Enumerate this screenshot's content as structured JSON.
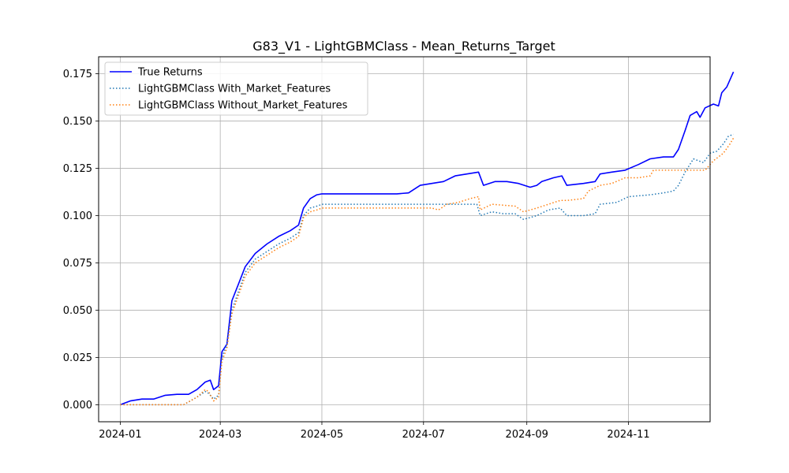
{
  "chart_data": {
    "type": "line",
    "title": "G83_V1 - LightGBMClass - Mean_Returns_Target",
    "xlabel": "",
    "ylabel": "",
    "x_type": "date",
    "xlim": [
      "2023-12-19",
      "2024-12-20"
    ],
    "ylim": [
      -0.009,
      0.184
    ],
    "x_ticks": [
      "2024-01",
      "2024-03",
      "2024-05",
      "2024-07",
      "2024-09",
      "2024-11"
    ],
    "y_ticks": [
      "0.000",
      "0.025",
      "0.050",
      "0.075",
      "0.100",
      "0.125",
      "0.150",
      "0.175"
    ],
    "grid": true,
    "legend_position": "top-left",
    "series": [
      {
        "name": "True Returns",
        "color": "#0000ff",
        "style": "solid",
        "points": [
          [
            "2024-01-01",
            0.0
          ],
          [
            "2024-01-07",
            0.002
          ],
          [
            "2024-01-14",
            0.003
          ],
          [
            "2024-01-21",
            0.003
          ],
          [
            "2024-01-28",
            0.005
          ],
          [
            "2024-02-04",
            0.0055
          ],
          [
            "2024-02-11",
            0.0055
          ],
          [
            "2024-02-16",
            0.008
          ],
          [
            "2024-02-21",
            0.012
          ],
          [
            "2024-02-24",
            0.013
          ],
          [
            "2024-02-26",
            0.008
          ],
          [
            "2024-02-29",
            0.01
          ],
          [
            "2024-03-02",
            0.028
          ],
          [
            "2024-03-05",
            0.032
          ],
          [
            "2024-03-08",
            0.055
          ],
          [
            "2024-03-12",
            0.064
          ],
          [
            "2024-03-16",
            0.073
          ],
          [
            "2024-03-22",
            0.08
          ],
          [
            "2024-03-29",
            0.085
          ],
          [
            "2024-04-05",
            0.089
          ],
          [
            "2024-04-12",
            0.092
          ],
          [
            "2024-04-17",
            0.095
          ],
          [
            "2024-04-20",
            0.104
          ],
          [
            "2024-04-24",
            0.109
          ],
          [
            "2024-04-28",
            0.111
          ],
          [
            "2024-05-01",
            0.1115
          ],
          [
            "2024-06-15",
            0.1115
          ],
          [
            "2024-06-22",
            0.112
          ],
          [
            "2024-06-29",
            0.116
          ],
          [
            "2024-07-06",
            0.117
          ],
          [
            "2024-07-13",
            0.118
          ],
          [
            "2024-07-20",
            0.121
          ],
          [
            "2024-07-27",
            0.122
          ],
          [
            "2024-08-03",
            0.123
          ],
          [
            "2024-08-06",
            0.116
          ],
          [
            "2024-08-13",
            0.118
          ],
          [
            "2024-08-20",
            0.118
          ],
          [
            "2024-08-27",
            0.117
          ],
          [
            "2024-09-03",
            0.115
          ],
          [
            "2024-09-07",
            0.116
          ],
          [
            "2024-09-10",
            0.118
          ],
          [
            "2024-09-17",
            0.12
          ],
          [
            "2024-09-22",
            0.121
          ],
          [
            "2024-09-25",
            0.116
          ],
          [
            "2024-10-05",
            0.117
          ],
          [
            "2024-10-12",
            0.118
          ],
          [
            "2024-10-15",
            0.122
          ],
          [
            "2024-10-22",
            0.123
          ],
          [
            "2024-10-30",
            0.124
          ],
          [
            "2024-11-07",
            0.127
          ],
          [
            "2024-11-14",
            0.13
          ],
          [
            "2024-11-22",
            0.131
          ],
          [
            "2024-11-28",
            0.131
          ],
          [
            "2024-12-01",
            0.135
          ],
          [
            "2024-12-05",
            0.145
          ],
          [
            "2024-12-08",
            0.153
          ],
          [
            "2024-12-12",
            0.155
          ],
          [
            "2024-12-14",
            0.152
          ],
          [
            "2024-12-17",
            0.157
          ],
          [
            "2024-12-22",
            0.159
          ],
          [
            "2024-12-25",
            0.158
          ],
          [
            "2024-12-27",
            0.165
          ],
          [
            "2024-12-30",
            0.168
          ],
          [
            "2025-01-03",
            0.176
          ]
        ]
      },
      {
        "name": "LightGBMClass With_Market_Features",
        "color": "#1f77b4",
        "style": "dotted",
        "points": [
          [
            "2024-01-01",
            0.0
          ],
          [
            "2024-02-08",
            0.0
          ],
          [
            "2024-02-16",
            0.004
          ],
          [
            "2024-02-21",
            0.007
          ],
          [
            "2024-02-23",
            0.006
          ],
          [
            "2024-02-26",
            0.003
          ],
          [
            "2024-02-29",
            0.005
          ],
          [
            "2024-03-02",
            0.025
          ],
          [
            "2024-03-05",
            0.032
          ],
          [
            "2024-03-08",
            0.05
          ],
          [
            "2024-03-12",
            0.06
          ],
          [
            "2024-03-16",
            0.07
          ],
          [
            "2024-03-22",
            0.077
          ],
          [
            "2024-03-29",
            0.081
          ],
          [
            "2024-04-05",
            0.085
          ],
          [
            "2024-04-12",
            0.088
          ],
          [
            "2024-04-17",
            0.091
          ],
          [
            "2024-04-20",
            0.1
          ],
          [
            "2024-04-24",
            0.104
          ],
          [
            "2024-04-28",
            0.105
          ],
          [
            "2024-05-01",
            0.106
          ],
          [
            "2024-06-30",
            0.106
          ],
          [
            "2024-08-02",
            0.106
          ],
          [
            "2024-08-04",
            0.1
          ],
          [
            "2024-08-11",
            0.102
          ],
          [
            "2024-08-18",
            0.101
          ],
          [
            "2024-08-25",
            0.101
          ],
          [
            "2024-08-30",
            0.098
          ],
          [
            "2024-09-07",
            0.1
          ],
          [
            "2024-09-14",
            0.103
          ],
          [
            "2024-09-21",
            0.104
          ],
          [
            "2024-09-25",
            0.1
          ],
          [
            "2024-10-05",
            0.1
          ],
          [
            "2024-10-12",
            0.101
          ],
          [
            "2024-10-15",
            0.106
          ],
          [
            "2024-10-25",
            0.107
          ],
          [
            "2024-11-01",
            0.11
          ],
          [
            "2024-11-14",
            0.111
          ],
          [
            "2024-11-22",
            0.112
          ],
          [
            "2024-11-28",
            0.113
          ],
          [
            "2024-12-01",
            0.116
          ],
          [
            "2024-12-05",
            0.123
          ],
          [
            "2024-12-10",
            0.13
          ],
          [
            "2024-12-16",
            0.128
          ],
          [
            "2024-12-20",
            0.133
          ],
          [
            "2024-12-24",
            0.134
          ],
          [
            "2024-12-28",
            0.138
          ],
          [
            "2024-12-31",
            0.142
          ],
          [
            "2025-01-03",
            0.143
          ]
        ]
      },
      {
        "name": "LightGBMClass Without_Market_Features",
        "color": "#ff7f0e",
        "style": "dotted",
        "points": [
          [
            "2024-01-01",
            0.0
          ],
          [
            "2024-02-08",
            0.0
          ],
          [
            "2024-02-16",
            0.004
          ],
          [
            "2024-02-21",
            0.008
          ],
          [
            "2024-02-23",
            0.007
          ],
          [
            "2024-02-26",
            0.002
          ],
          [
            "2024-02-29",
            0.004
          ],
          [
            "2024-03-02",
            0.023
          ],
          [
            "2024-03-05",
            0.03
          ],
          [
            "2024-03-08",
            0.048
          ],
          [
            "2024-03-12",
            0.058
          ],
          [
            "2024-03-16",
            0.068
          ],
          [
            "2024-03-22",
            0.075
          ],
          [
            "2024-03-29",
            0.079
          ],
          [
            "2024-04-05",
            0.083
          ],
          [
            "2024-04-12",
            0.086
          ],
          [
            "2024-04-17",
            0.089
          ],
          [
            "2024-04-20",
            0.099
          ],
          [
            "2024-04-24",
            0.102
          ],
          [
            "2024-04-28",
            0.103
          ],
          [
            "2024-05-01",
            0.104
          ],
          [
            "2024-06-30",
            0.104
          ],
          [
            "2024-07-06",
            0.104
          ],
          [
            "2024-07-10",
            0.103
          ],
          [
            "2024-07-15",
            0.106
          ],
          [
            "2024-07-22",
            0.107
          ],
          [
            "2024-07-29",
            0.109
          ],
          [
            "2024-08-03",
            0.11
          ],
          [
            "2024-08-04",
            0.103
          ],
          [
            "2024-08-11",
            0.106
          ],
          [
            "2024-08-25",
            0.105
          ],
          [
            "2024-08-30",
            0.102
          ],
          [
            "2024-09-07",
            0.104
          ],
          [
            "2024-09-14",
            0.106
          ],
          [
            "2024-09-21",
            0.108
          ],
          [
            "2024-09-25",
            0.108
          ],
          [
            "2024-10-05",
            0.109
          ],
          [
            "2024-10-08",
            0.113
          ],
          [
            "2024-10-15",
            0.116
          ],
          [
            "2024-10-22",
            0.117
          ],
          [
            "2024-10-30",
            0.12
          ],
          [
            "2024-11-07",
            0.12
          ],
          [
            "2024-11-14",
            0.121
          ],
          [
            "2024-11-16",
            0.124
          ],
          [
            "2024-11-22",
            0.124
          ],
          [
            "2024-12-17",
            0.124
          ],
          [
            "2024-12-22",
            0.129
          ],
          [
            "2024-12-28",
            0.133
          ],
          [
            "2025-01-01",
            0.138
          ],
          [
            "2025-01-03",
            0.141
          ]
        ]
      }
    ]
  }
}
